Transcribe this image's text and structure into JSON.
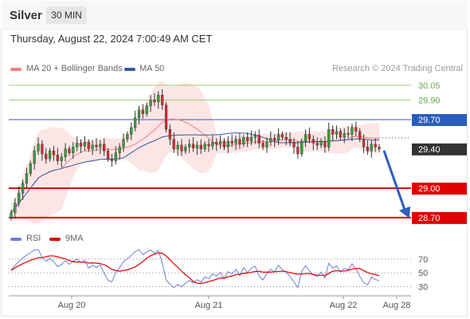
{
  "header": {
    "instrument": "Silver",
    "timeframe": "30 MIN",
    "datetime": "Thursday, August 22, 2024 7:00:49 AM CET"
  },
  "legend": {
    "ma20_label": "MA 20 + Bollinger Bands",
    "ma50_label": "MA 50",
    "ma20_color": "#f08080",
    "ma50_color": "#355a9e",
    "copyright": "Research © 2024 Trading Central"
  },
  "rsi_legend": {
    "rsi_label": "RSI",
    "ma_label": "9MA",
    "rsi_color": "#6d7fd6",
    "ma_color": "#e00000"
  },
  "chart_data": {
    "type": "candlestick",
    "price_levels": [
      {
        "value": 30.05,
        "label": "30.05",
        "kind": "resistance-target",
        "color": "#9bcf7c"
      },
      {
        "value": 29.9,
        "label": "29.90",
        "kind": "resistance-target",
        "color": "#9bcf7c"
      },
      {
        "value": 29.7,
        "label": "29.70",
        "kind": "pivot",
        "color": "#2b5ebc"
      },
      {
        "value": 29.4,
        "label": "29.40",
        "kind": "last-price",
        "color": "#333333"
      },
      {
        "value": 29.0,
        "label": "29.00",
        "kind": "support-target",
        "color": "#e00000"
      },
      {
        "value": 28.7,
        "label": "28.70",
        "kind": "support-target",
        "color": "#e00000"
      }
    ],
    "forecast_arrow": {
      "from": 29.4,
      "to": 28.7,
      "direction": "down"
    },
    "x_ticks": [
      "Aug 20",
      "Aug 21",
      "Aug 22",
      "Aug 28"
    ],
    "price_range": [
      28.6,
      30.2
    ],
    "rsi": {
      "ticks": [
        70,
        50,
        30
      ],
      "range": [
        20,
        85
      ],
      "dotted_levels": [
        70,
        50,
        30
      ]
    },
    "close_series": [
      28.75,
      28.85,
      28.95,
      29.05,
      29.15,
      29.25,
      29.38,
      29.45,
      29.35,
      29.3,
      29.38,
      29.34,
      29.28,
      29.32,
      29.4,
      29.36,
      29.42,
      29.46,
      29.43,
      29.47,
      29.4,
      29.44,
      29.42,
      29.45,
      29.38,
      29.3,
      29.28,
      29.36,
      29.42,
      29.5,
      29.55,
      29.62,
      29.72,
      29.8,
      29.76,
      29.84,
      29.9,
      29.88,
      29.95,
      29.85,
      29.6,
      29.5,
      29.4,
      29.44,
      29.38,
      29.42,
      29.45,
      29.41,
      29.44,
      29.4,
      29.45,
      29.43,
      29.47,
      29.45,
      29.48,
      29.42,
      29.48,
      29.46,
      29.5,
      29.45,
      29.52,
      29.48,
      29.52,
      29.54,
      29.46,
      29.42,
      29.47,
      29.51,
      29.49,
      29.55,
      29.52,
      29.5,
      29.47,
      29.42,
      29.35,
      29.48,
      29.55,
      29.5,
      29.46,
      29.44,
      29.48,
      29.42,
      29.6,
      29.55,
      29.58,
      29.52,
      29.56,
      29.55,
      29.62,
      29.58,
      29.5,
      29.42,
      29.38,
      29.45,
      29.42,
      29.4
    ]
  },
  "axis_labels": {
    "price": [
      "30.05",
      "29.90",
      "29.70",
      "29.40",
      "29.00",
      "28.70"
    ],
    "rsi": [
      "70",
      "50",
      "30"
    ]
  }
}
